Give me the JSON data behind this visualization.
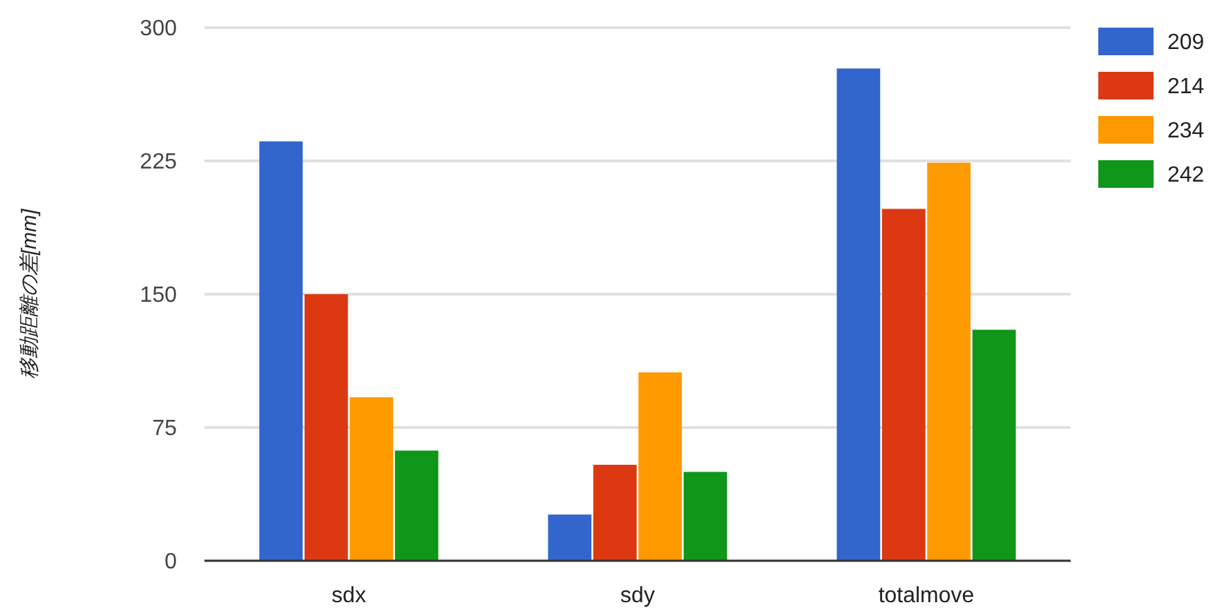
{
  "chart_data": {
    "type": "bar",
    "ylabel": "移動距離の差[mm]",
    "categories": [
      "sdx",
      "sdy",
      "totalmove"
    ],
    "series": [
      {
        "name": "209",
        "color": "#3366cc",
        "values": [
          236,
          26,
          277
        ]
      },
      {
        "name": "214",
        "color": "#dc3912",
        "values": [
          150,
          54,
          198
        ]
      },
      {
        "name": "234",
        "color": "#ff9900",
        "values": [
          92,
          106,
          224
        ]
      },
      {
        "name": "242",
        "color": "#109618",
        "values": [
          62,
          50,
          130
        ]
      }
    ],
    "ylim": [
      0,
      300
    ],
    "yticks": [
      0,
      75,
      150,
      225,
      300
    ],
    "grid": "y",
    "legend": "top right"
  }
}
